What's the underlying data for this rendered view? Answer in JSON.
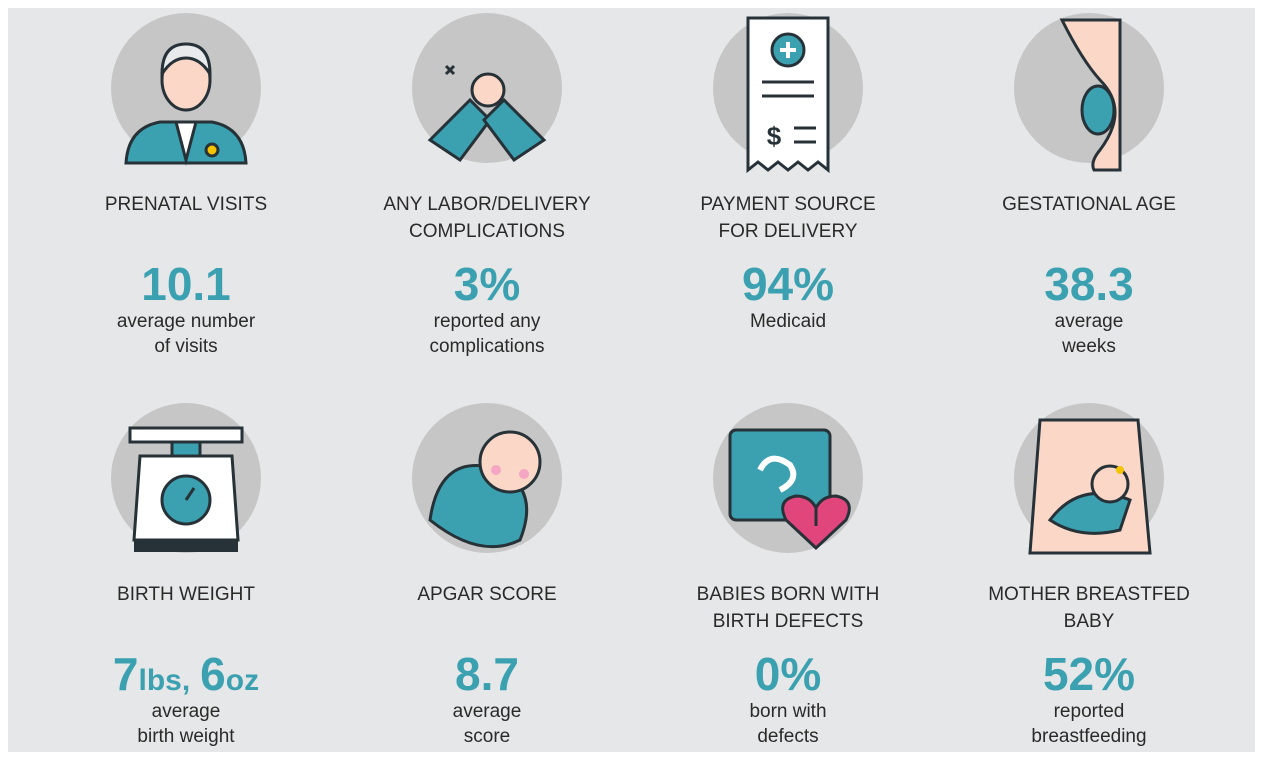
{
  "cards": [
    {
      "title_lines": [
        "PRENATAL VISITS"
      ],
      "value": "10.1",
      "desc_lines": [
        "average number",
        "of visits"
      ]
    },
    {
      "title_lines": [
        "ANY LABOR/DELIVERY",
        "COMPLICATIONS"
      ],
      "value": "3%",
      "desc_lines": [
        "reported any",
        "complications"
      ]
    },
    {
      "title_lines": [
        "PAYMENT SOURCE",
        "FOR DELIVERY"
      ],
      "value": "94%",
      "desc_lines": [
        "Medicaid"
      ]
    },
    {
      "title_lines": [
        "GESTATIONAL AGE"
      ],
      "value": "38.3",
      "desc_lines": [
        "average",
        "weeks"
      ]
    },
    {
      "title_lines": [
        "BIRTH WEIGHT"
      ],
      "value_parts": [
        "7",
        "lbs,",
        "6",
        "oz"
      ],
      "desc_lines": [
        "average",
        "birth weight"
      ]
    },
    {
      "title_lines": [
        "APGAR SCORE"
      ],
      "value": "8.7",
      "desc_lines": [
        "average",
        "score"
      ]
    },
    {
      "title_lines": [
        "BABIES BORN WITH",
        "BIRTH DEFECTS"
      ],
      "value": "0%",
      "desc_lines": [
        "born with",
        "defects"
      ]
    },
    {
      "title_lines": [
        "MOTHER BREASTFED",
        "BABY"
      ],
      "value": "52%",
      "desc_lines": [
        "reported",
        "breastfeeding"
      ]
    }
  ]
}
